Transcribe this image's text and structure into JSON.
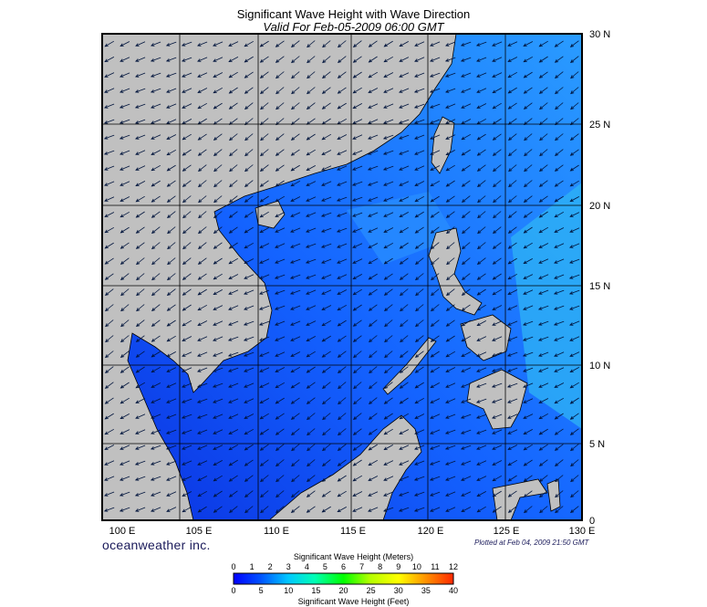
{
  "title": "Significant Wave Height with Wave Direction",
  "subtitle": "Valid For Feb-05-2009 06:00 GMT",
  "brand": "oceanweather inc.",
  "plotted": "Plotted at Feb 04, 2009 21:50 GMT",
  "lat_labels": [
    "30 N",
    "25 N",
    "20 N",
    "15 N",
    "10 N",
    "5 N",
    "0"
  ],
  "lon_labels": [
    "100 E",
    "105 E",
    "110 E",
    "115 E",
    "120 E",
    "125 E",
    "130 E"
  ],
  "colorbar": {
    "title_top": "Significant Wave Height (Meters)",
    "title_bottom": "Significant Wave Height (Feet)",
    "meters": [
      "0",
      "1",
      "2",
      "3",
      "4",
      "5",
      "6",
      "7",
      "8",
      "9",
      "10",
      "11",
      "12"
    ],
    "feet": [
      "0",
      "5",
      "10",
      "15",
      "20",
      "25",
      "30",
      "35",
      "40"
    ]
  },
  "colors": {
    "land": "#c0c0c0",
    "water_low": "#0a3cf0",
    "water_mid": "#1e78ff",
    "water_high": "#3cc8f0",
    "arrow": "#00143c"
  }
}
